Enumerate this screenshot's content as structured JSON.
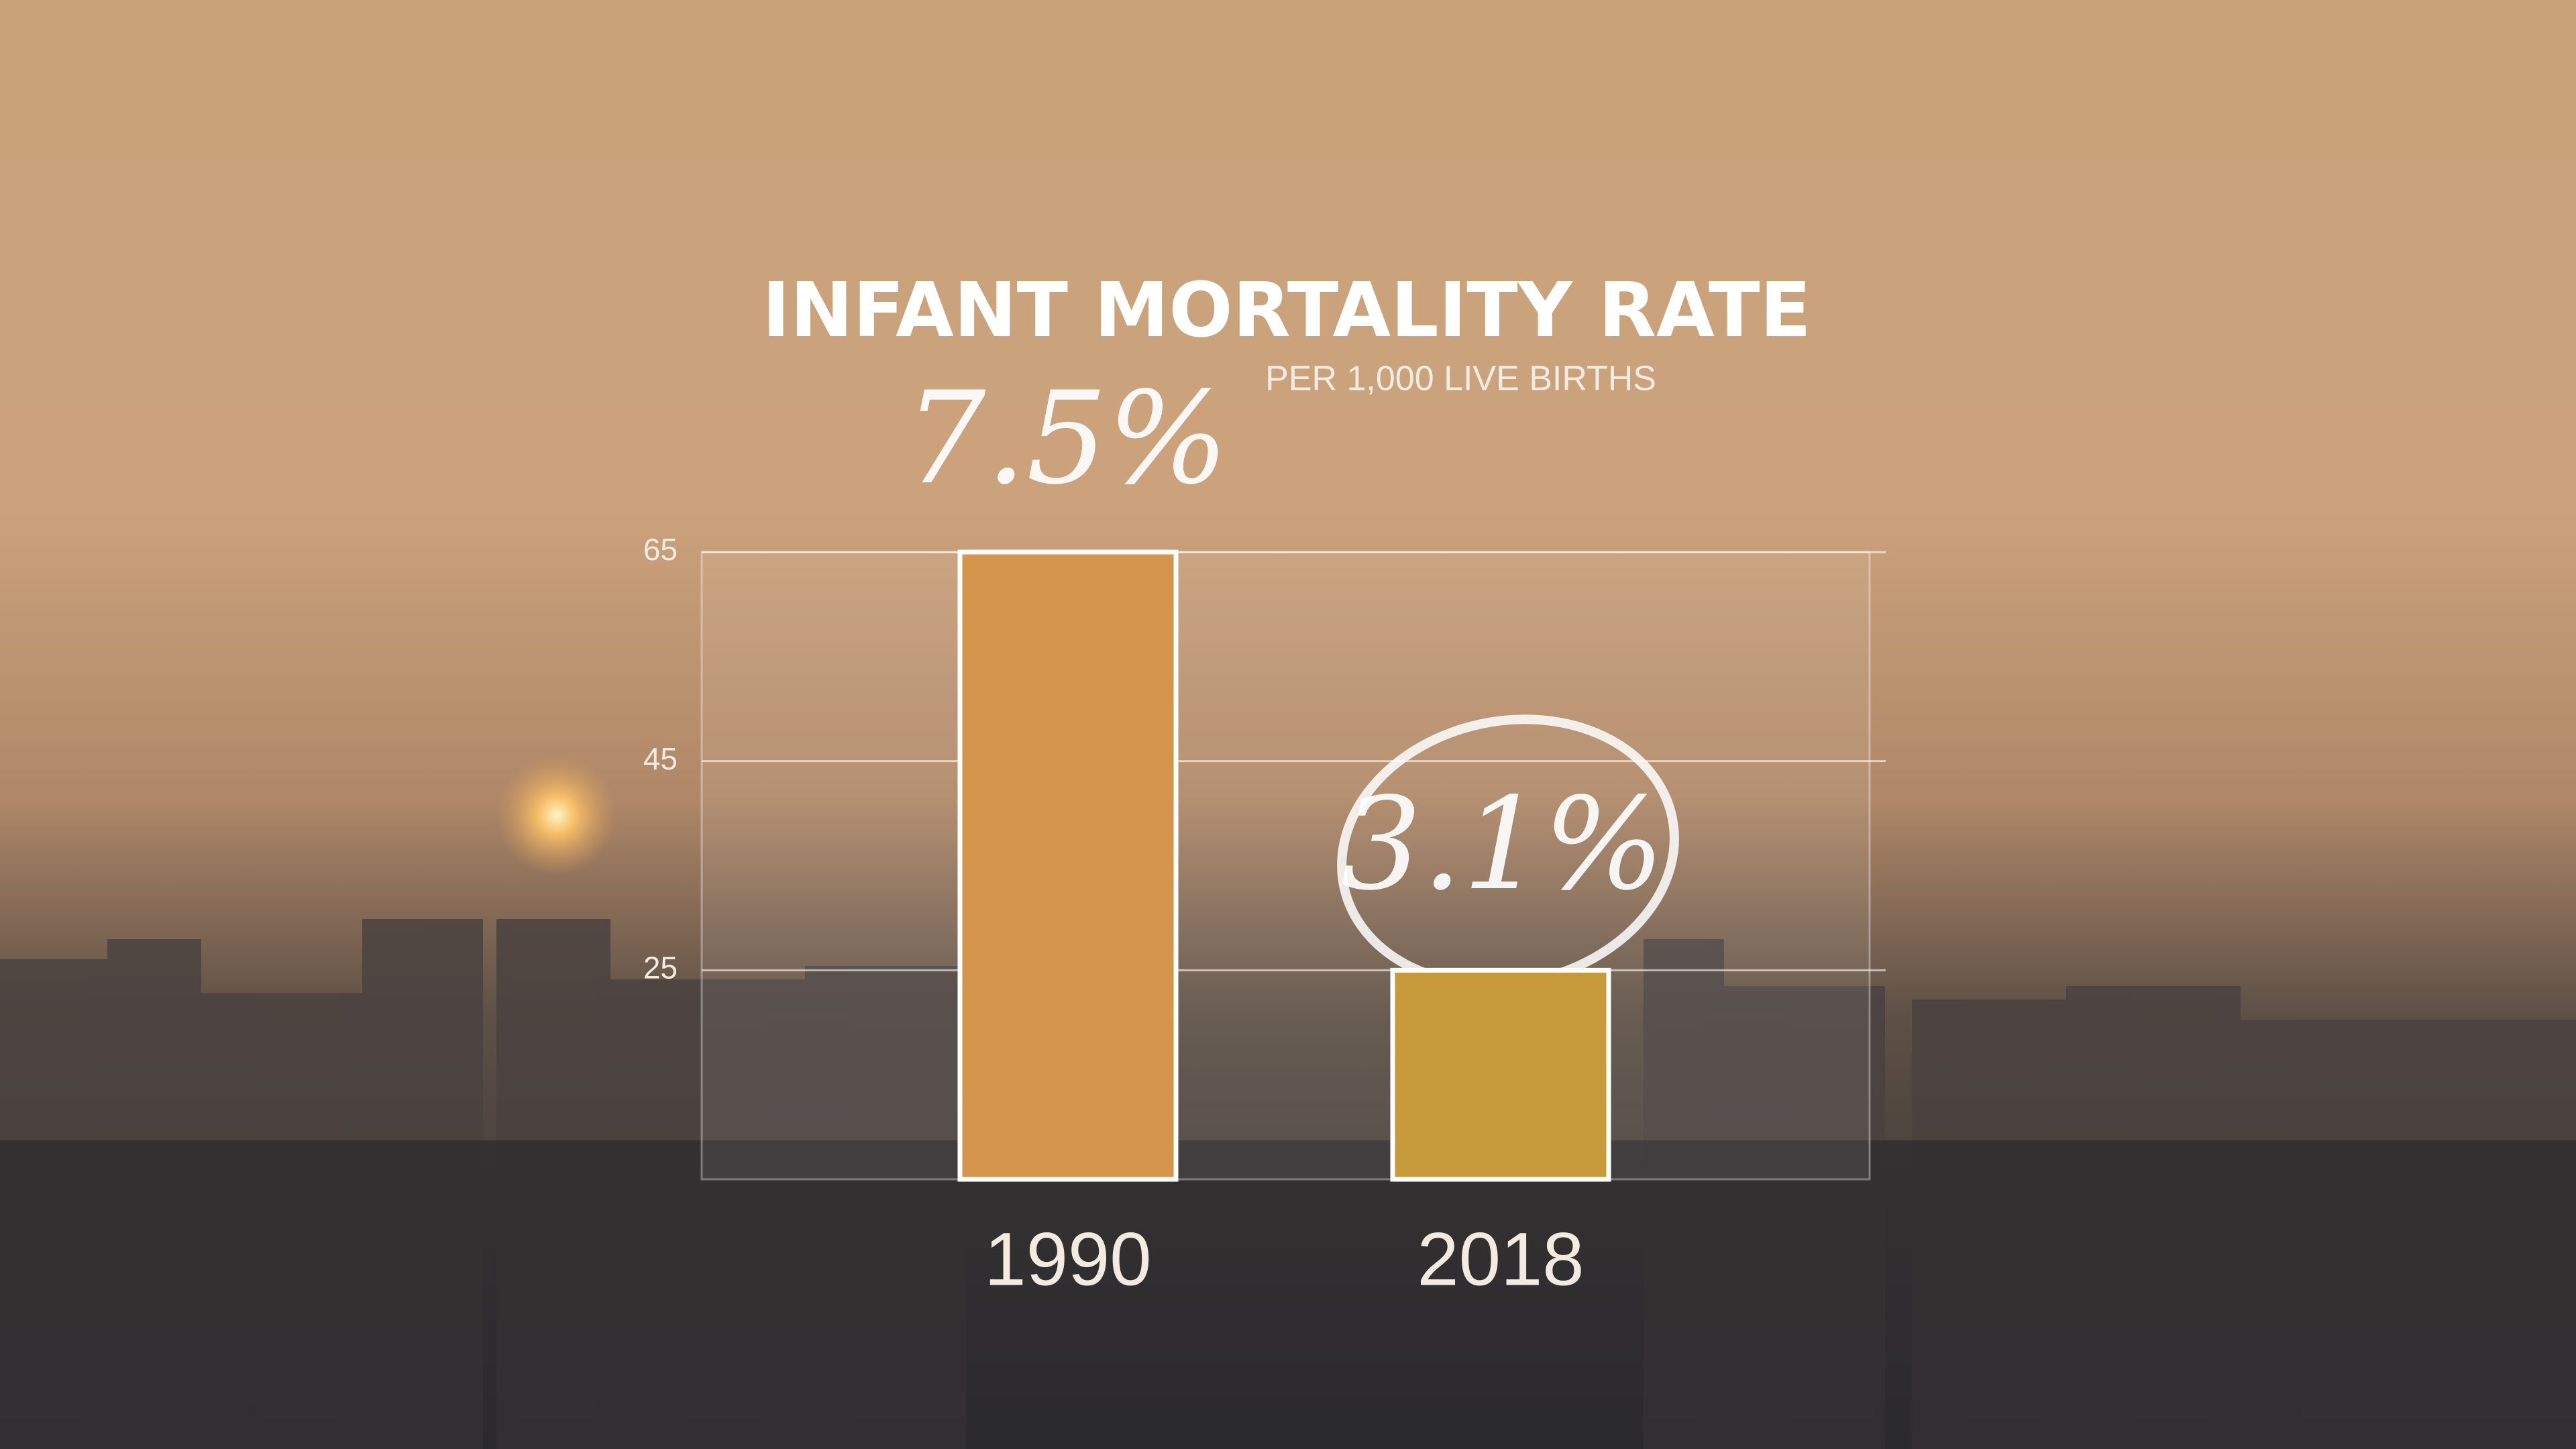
{
  "chart_data": {
    "type": "bar",
    "title": "INFANT MORTALITY RATE",
    "subtitle": "PER 1,000 LIVE BIRTHS",
    "categories": [
      "1990",
      "2018"
    ],
    "values": [
      65,
      25
    ],
    "colors": [
      "#d4944b",
      "#c79a3b"
    ],
    "annotations": [
      "7.5%",
      "3.1%"
    ],
    "ylim": [
      5,
      65
    ],
    "yticks": [
      65,
      45,
      25
    ],
    "grid": true
  }
}
